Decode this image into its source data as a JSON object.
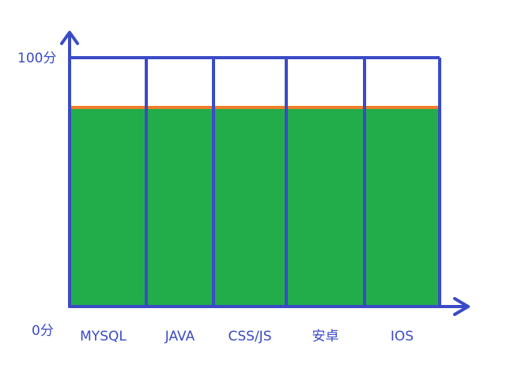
{
  "chart_data": {
    "type": "bar",
    "title": "",
    "xlabel": "",
    "ylabel": "",
    "categories": [
      "MYSQL",
      "JAVA",
      "CSS/JS",
      "安卓",
      "IOS"
    ],
    "values": [
      80,
      80,
      80,
      80,
      80
    ],
    "ylim": [
      0,
      100
    ],
    "y_tick_labels": {
      "min": "0分",
      "max": "100分"
    },
    "reference_line": {
      "value": 80
    },
    "grid": false,
    "legend": "none",
    "colors": {
      "bar_fill": "#22ad4a",
      "outline": "#3b4bc6",
      "axis": "#3b4bc6",
      "reference_line": "#ef7d29",
      "text": "#3b4bc6"
    }
  }
}
